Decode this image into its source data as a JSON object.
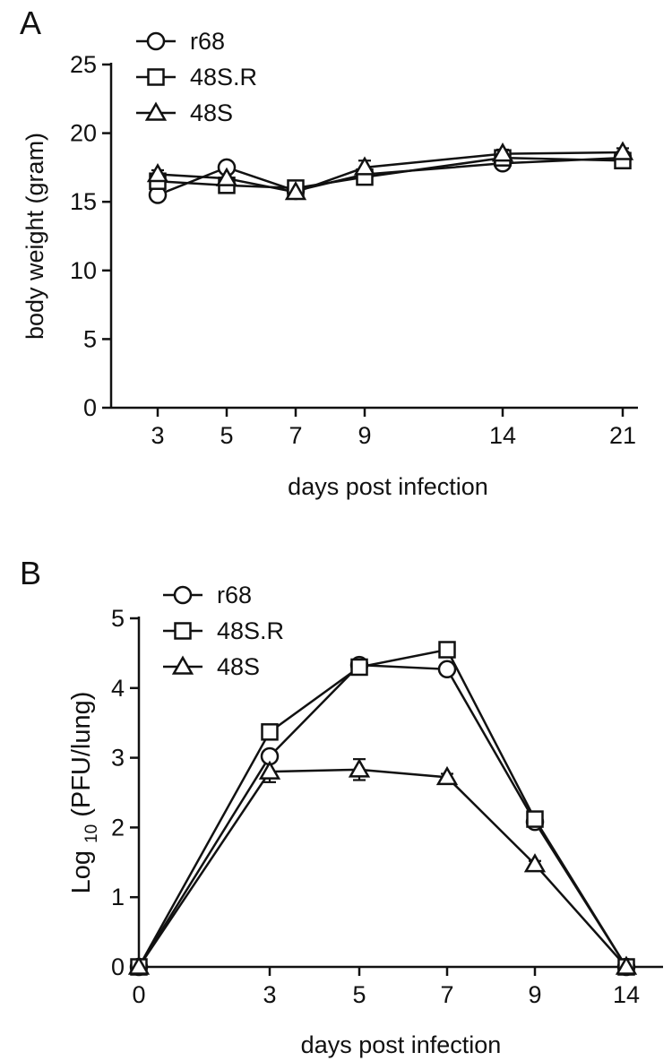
{
  "chart_data": [
    {
      "panel_label": "A",
      "type": "line",
      "ylabel": "body weight (gram)",
      "xlabel": "days post infection",
      "categories": [
        "3",
        "5",
        "7",
        "9",
        "14",
        "21"
      ],
      "ylim": [
        0,
        25
      ],
      "yticks": [
        0,
        5,
        10,
        15,
        20,
        25
      ],
      "legend_position": "top-left",
      "series": [
        {
          "name": "r68",
          "marker": "circle",
          "values": [
            15.5,
            17.5,
            15.8,
            17.0,
            17.8,
            18.2
          ],
          "errors": [
            0.3,
            0.3,
            0.3,
            0.3,
            0.3,
            0.3
          ]
        },
        {
          "name": "48S.R",
          "marker": "square",
          "values": [
            16.5,
            16.2,
            16.0,
            16.8,
            18.2,
            18.0
          ],
          "errors": [
            0.3,
            0.5,
            0.3,
            0.3,
            0.3,
            0.3
          ]
        },
        {
          "name": "48S",
          "marker": "triangle",
          "values": [
            17.0,
            16.7,
            15.7,
            17.5,
            18.5,
            18.6
          ],
          "errors": [
            0.3,
            0.5,
            0.3,
            0.5,
            0.3,
            0.3
          ]
        }
      ]
    },
    {
      "panel_label": "B",
      "type": "line",
      "ylabel_main": "Log",
      "ylabel_sub": "10",
      "ylabel_rest": "(PFU/lung)",
      "xlabel": "days post infection",
      "categories": [
        "0",
        "3",
        "5",
        "7",
        "9",
        "14"
      ],
      "ylim": [
        0,
        5
      ],
      "yticks": [
        0,
        1,
        2,
        3,
        4,
        5
      ],
      "legend_position": "top-left",
      "series": [
        {
          "name": "r68",
          "marker": "circle",
          "values": [
            0,
            3.02,
            4.33,
            4.27,
            2.08,
            0
          ],
          "errors": [
            0,
            0.08,
            0.05,
            0.05,
            0.05,
            0
          ]
        },
        {
          "name": "48S.R",
          "marker": "square",
          "values": [
            0,
            3.37,
            4.3,
            4.55,
            2.12,
            0
          ],
          "errors": [
            0,
            0.08,
            0.05,
            0.08,
            0.05,
            0
          ]
        },
        {
          "name": "48S",
          "marker": "triangle",
          "values": [
            0,
            2.8,
            2.83,
            2.72,
            1.47,
            0
          ],
          "errors": [
            0,
            0.15,
            0.15,
            0.05,
            0.05,
            0
          ]
        }
      ]
    }
  ]
}
